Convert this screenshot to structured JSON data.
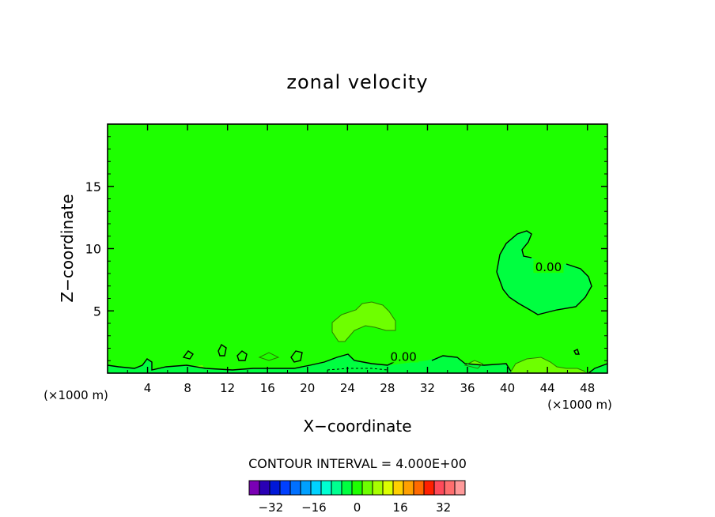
{
  "chart_data": {
    "type": "contour",
    "title": "zonal velocity",
    "xlabel": "X−coordinate",
    "ylabel": "Z−coordinate",
    "x_unit_note": "(×1000 m)",
    "xlim": [
      0,
      50
    ],
    "ylim": [
      0,
      20
    ],
    "x_ticks": [
      4,
      8,
      12,
      16,
      20,
      24,
      28,
      32,
      36,
      40,
      44,
      48
    ],
    "y_ticks": [
      5,
      10,
      15
    ],
    "background_value": 0,
    "contour_labels": [
      {
        "text": "0.00",
        "x": 44.1,
        "y": 8.5
      },
      {
        "text": "0.00",
        "x": 29.6,
        "y": 1.3
      }
    ],
    "contour_interval_text": "CONTOUR INTERVAL = 4.000E+00",
    "colorbar": {
      "min": -40,
      "max": 40,
      "step": 4,
      "tick_labels": [
        "−32",
        "−16",
        "0",
        "16",
        "32"
      ],
      "tick_values": [
        -32,
        -16,
        0,
        16,
        32
      ],
      "colors": [
        "#7a00b4",
        "#2a00b4",
        "#0018d8",
        "#0040ff",
        "#0070ff",
        "#00a0ff",
        "#00d2ff",
        "#00ffd2",
        "#00ff90",
        "#00ff40",
        "#1eff00",
        "#6eff00",
        "#a8ff00",
        "#dcff00",
        "#ffd000",
        "#ffa000",
        "#ff6a00",
        "#ff2000",
        "#ff4a5a",
        "#ff6e6e",
        "#ff9a9a"
      ]
    },
    "field_colors": {
      "background": "#1eff00",
      "slightly_positive": "#6eff00",
      "slightly_negative": "#00ff40"
    }
  }
}
